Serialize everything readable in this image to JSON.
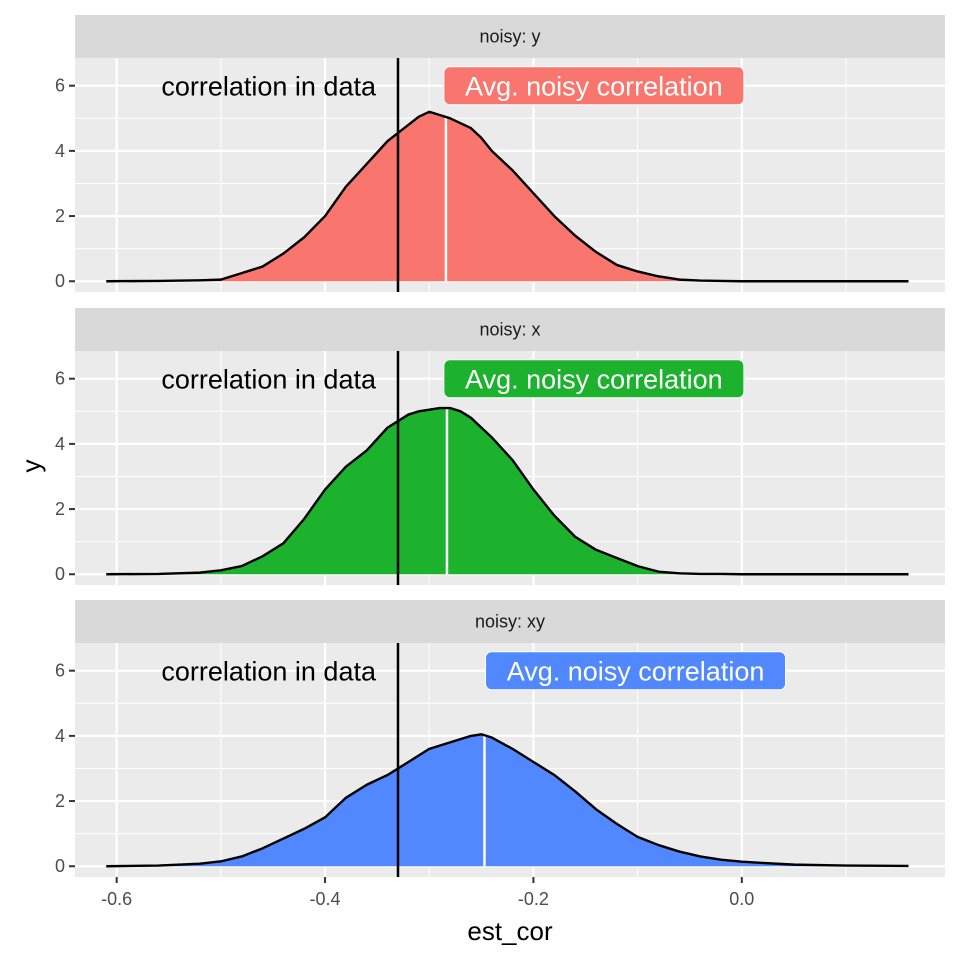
{
  "chart_data": {
    "type": "area",
    "facet_var": "noisy",
    "xlabel": "est_cor",
    "ylabel": "y",
    "xlim": [
      -0.64,
      0.195
    ],
    "ylim": [
      -0.33,
      6.85
    ],
    "x_ticks": [
      -0.6,
      -0.4,
      -0.2,
      0.0
    ],
    "x_tick_labels": [
      "-0.6",
      "-0.4",
      "-0.2",
      "0.0"
    ],
    "y_ticks": [
      0,
      2,
      4,
      6
    ],
    "y_tick_labels": [
      "0",
      "2",
      "4",
      "6"
    ],
    "grid": true,
    "legend": "none",
    "reference_line": {
      "x": -0.33,
      "label": "correlation in data",
      "label_y": 6
    },
    "panels": [
      {
        "strip": "noisy: y",
        "fill": "#F8766D",
        "mean_line_x": -0.284,
        "mean_label": "Avg. noisy correlation",
        "mean_label_x": -0.142,
        "label_y": 6,
        "x": [
          -0.61,
          -0.56,
          -0.52,
          -0.5,
          -0.48,
          -0.46,
          -0.44,
          -0.42,
          -0.4,
          -0.38,
          -0.36,
          -0.34,
          -0.32,
          -0.31,
          -0.3,
          -0.29,
          -0.28,
          -0.27,
          -0.26,
          -0.25,
          -0.24,
          -0.22,
          -0.2,
          -0.18,
          -0.16,
          -0.14,
          -0.12,
          -0.1,
          -0.08,
          -0.06,
          -0.04,
          -0.02,
          0.0,
          0.05,
          0.1,
          0.16
        ],
        "y": [
          0,
          0.01,
          0.03,
          0.05,
          0.25,
          0.45,
          0.85,
          1.35,
          2.0,
          2.9,
          3.6,
          4.3,
          4.8,
          5.05,
          5.2,
          5.1,
          5.0,
          4.85,
          4.7,
          4.4,
          4.0,
          3.4,
          2.7,
          2.0,
          1.4,
          0.9,
          0.5,
          0.3,
          0.15,
          0.05,
          0.02,
          0.01,
          0.0,
          0.0,
          0.0,
          0.0
        ]
      },
      {
        "strip": "noisy: x",
        "fill": "#1CB22E",
        "mean_line_x": -0.283,
        "mean_label": "Avg. noisy correlation",
        "mean_label_x": -0.142,
        "label_y": 6,
        "x": [
          -0.61,
          -0.56,
          -0.52,
          -0.5,
          -0.48,
          -0.46,
          -0.44,
          -0.42,
          -0.4,
          -0.38,
          -0.36,
          -0.34,
          -0.32,
          -0.31,
          -0.3,
          -0.29,
          -0.28,
          -0.27,
          -0.26,
          -0.25,
          -0.24,
          -0.22,
          -0.2,
          -0.18,
          -0.16,
          -0.14,
          -0.12,
          -0.1,
          -0.08,
          -0.06,
          -0.04,
          -0.02,
          0.0,
          0.05,
          0.1,
          0.16
        ],
        "y": [
          0,
          0.01,
          0.05,
          0.12,
          0.25,
          0.55,
          0.95,
          1.7,
          2.6,
          3.3,
          3.8,
          4.5,
          4.9,
          5.0,
          5.05,
          5.1,
          5.1,
          5.0,
          4.8,
          4.5,
          4.2,
          3.5,
          2.6,
          1.8,
          1.15,
          0.75,
          0.5,
          0.25,
          0.08,
          0.03,
          0.01,
          0.01,
          0.0,
          0.0,
          0.0,
          0.0
        ]
      },
      {
        "strip": "noisy: xy",
        "fill": "#5188FF",
        "mean_line_x": -0.247,
        "mean_label": "Avg. noisy correlation",
        "mean_label_x": -0.102,
        "label_y": 6,
        "x": [
          -0.61,
          -0.56,
          -0.52,
          -0.5,
          -0.48,
          -0.46,
          -0.44,
          -0.42,
          -0.4,
          -0.38,
          -0.36,
          -0.34,
          -0.32,
          -0.3,
          -0.28,
          -0.26,
          -0.25,
          -0.24,
          -0.22,
          -0.2,
          -0.18,
          -0.16,
          -0.14,
          -0.12,
          -0.1,
          -0.08,
          -0.06,
          -0.04,
          -0.02,
          0.0,
          0.02,
          0.05,
          0.1,
          0.16
        ],
        "y": [
          0,
          0.02,
          0.08,
          0.15,
          0.3,
          0.55,
          0.85,
          1.15,
          1.5,
          2.1,
          2.5,
          2.8,
          3.2,
          3.6,
          3.8,
          4.0,
          4.05,
          3.95,
          3.6,
          3.2,
          2.8,
          2.3,
          1.75,
          1.3,
          0.9,
          0.65,
          0.45,
          0.3,
          0.2,
          0.14,
          0.1,
          0.05,
          0.02,
          0.01
        ]
      }
    ]
  }
}
